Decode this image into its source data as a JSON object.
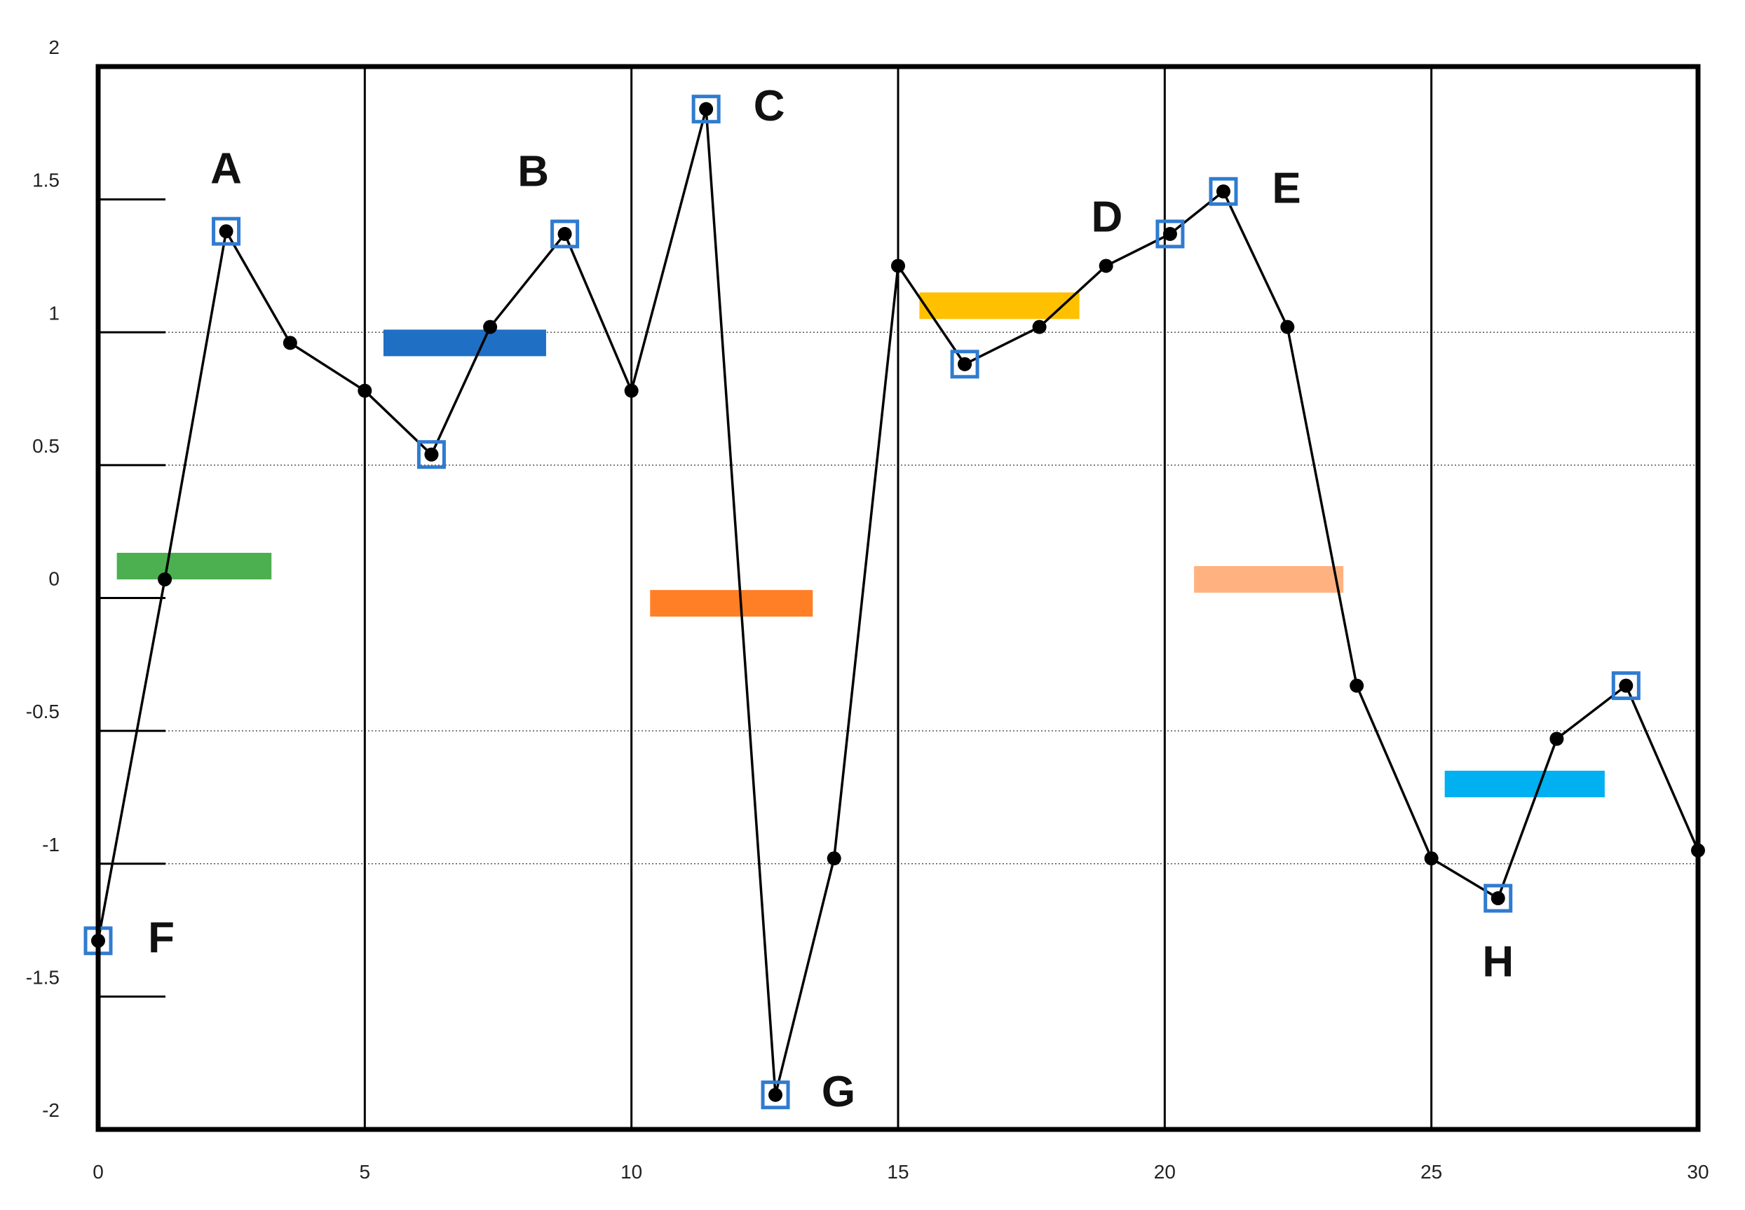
{
  "chart_data": {
    "type": "line",
    "title": "",
    "xlabel": "",
    "ylabel": "",
    "xlim": [
      0,
      30
    ],
    "ylim": [
      -2,
      2
    ],
    "x_ticks": [
      0,
      5,
      10,
      15,
      20,
      25,
      30
    ],
    "y_ticks": [
      2,
      1.5,
      1,
      0.5,
      0,
      -0.5,
      -1,
      -1.5,
      -2
    ],
    "y_tick_labels": [
      "2",
      "1.5",
      "1",
      "0.5",
      "0",
      "-0.5",
      "-1",
      "-1.5",
      "-2"
    ],
    "grid": {
      "vertical_at_x_ticks": true,
      "horizontal_dotted_at": [
        1,
        0.5,
        -0.5,
        -1
      ]
    },
    "series": [
      {
        "color": "#000000",
        "points": [
          {
            "x": 0.0,
            "y": -1.29
          },
          {
            "x": 1.25,
            "y": 0.07
          },
          {
            "x": 2.4,
            "y": 1.38
          },
          {
            "x": 3.6,
            "y": 0.96
          },
          {
            "x": 5.0,
            "y": 0.78
          },
          {
            "x": 6.25,
            "y": 0.54
          },
          {
            "x": 7.35,
            "y": 1.02
          },
          {
            "x": 8.75,
            "y": 1.37
          },
          {
            "x": 10.0,
            "y": 0.78
          },
          {
            "x": 11.4,
            "y": 1.84
          },
          {
            "x": 12.7,
            "y": -1.87
          },
          {
            "x": 13.8,
            "y": -0.98
          },
          {
            "x": 15.0,
            "y": 1.25
          },
          {
            "x": 16.25,
            "y": 0.88
          },
          {
            "x": 17.65,
            "y": 1.02
          },
          {
            "x": 18.9,
            "y": 1.25
          },
          {
            "x": 20.1,
            "y": 1.37
          },
          {
            "x": 21.1,
            "y": 1.53
          },
          {
            "x": 22.3,
            "y": 1.02
          },
          {
            "x": 23.6,
            "y": -0.33
          },
          {
            "x": 25.0,
            "y": -0.98
          },
          {
            "x": 26.25,
            "y": -1.13
          },
          {
            "x": 27.35,
            "y": -0.53
          },
          {
            "x": 28.65,
            "y": -0.33
          },
          {
            "x": 30.0,
            "y": -0.95
          }
        ]
      }
    ],
    "annotations": [
      {
        "label": "A",
        "x": 2.4,
        "y": 1.38
      },
      {
        "label": "B",
        "x": 8.75,
        "y": 1.37
      },
      {
        "label": "C",
        "x": 11.4,
        "y": 1.84
      },
      {
        "label": "D",
        "x": 20.1,
        "y": 1.37
      },
      {
        "label": "E",
        "x": 21.1,
        "y": 1.53
      },
      {
        "label": "F",
        "x": 0.0,
        "y": -1.29
      },
      {
        "label": "G",
        "x": 12.7,
        "y": -1.87
      },
      {
        "label": "H",
        "x": 26.25,
        "y": -1.13
      }
    ],
    "marked_points": [
      {
        "x": 0.0,
        "y": -1.29
      },
      {
        "x": 2.4,
        "y": 1.38
      },
      {
        "x": 6.25,
        "y": 0.54
      },
      {
        "x": 8.75,
        "y": 1.37
      },
      {
        "x": 11.4,
        "y": 1.84
      },
      {
        "x": 12.7,
        "y": -1.87
      },
      {
        "x": 16.25,
        "y": 0.88
      },
      {
        "x": 20.1,
        "y": 1.37
      },
      {
        "x": 21.1,
        "y": 1.53
      },
      {
        "x": 26.25,
        "y": -1.13
      },
      {
        "x": 28.65,
        "y": -0.33
      }
    ],
    "bars": [
      {
        "color": "#4CAF50",
        "x0": 0.35,
        "x1": 3.25,
        "y": 0.12
      },
      {
        "color": "#1F6FC5",
        "x0": 5.35,
        "x1": 8.4,
        "y": 0.96
      },
      {
        "color": "#FF7F27",
        "x0": 10.35,
        "x1": 13.4,
        "y": -0.02
      },
      {
        "color": "#FFC000",
        "x0": 15.4,
        "x1": 18.4,
        "y": 1.1
      },
      {
        "color": "#FFB27F",
        "x0": 20.55,
        "x1": 23.35,
        "y": 0.07
      },
      {
        "color": "#00B0F0",
        "x0": 25.25,
        "x1": 28.25,
        "y": -0.7
      }
    ],
    "marker_box_color": "#2F7BD0"
  }
}
